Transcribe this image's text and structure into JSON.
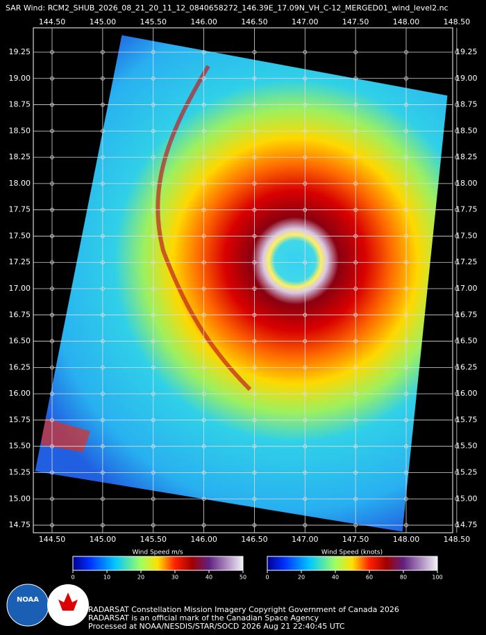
{
  "title": "SAR Wind: RCM2_SHUB_2026_08_21_20_11_12_0840658272_146.39E_17.09N_VH_C-12_MERGED01_wind_level2.nc",
  "map": {
    "lon_ticks": [
      {
        "value": 144.5,
        "label": "144.50"
      },
      {
        "value": 145,
        "label": "145.00"
      },
      {
        "value": 145.5,
        "label": "145.50"
      },
      {
        "value": 146,
        "label": "146.00"
      },
      {
        "value": 146.5,
        "label": "146.50"
      },
      {
        "value": 147,
        "label": "147.00"
      },
      {
        "value": 147.5,
        "label": "147.50"
      },
      {
        "value": 148,
        "label": "148.00"
      },
      {
        "value": 148.5,
        "label": "148.50"
      }
    ],
    "lat_ticks": [
      {
        "value": 19.25,
        "label": "19.25"
      },
      {
        "value": 19,
        "label": "19.00"
      },
      {
        "value": 18.75,
        "label": "18.75"
      },
      {
        "value": 18.5,
        "label": "18.50"
      },
      {
        "value": 18.25,
        "label": "18.25"
      },
      {
        "value": 18,
        "label": "18.00"
      },
      {
        "value": 17.75,
        "label": "17.75"
      },
      {
        "value": 17.5,
        "label": "17.50"
      },
      {
        "value": 17.25,
        "label": "17.25"
      },
      {
        "value": 17,
        "label": "17.00"
      },
      {
        "value": 16.75,
        "label": "16.75"
      },
      {
        "value": 16.5,
        "label": "16.50"
      },
      {
        "value": 16.25,
        "label": "16.25"
      },
      {
        "value": 16,
        "label": "16.00"
      },
      {
        "value": 15.75,
        "label": "15.75"
      },
      {
        "value": 15.5,
        "label": "15.50"
      },
      {
        "value": 15.25,
        "label": "15.25"
      },
      {
        "value": 15,
        "label": "15.00"
      },
      {
        "value": 14.75,
        "label": "14.75"
      }
    ]
  },
  "colorbars": [
    {
      "title": "Wind Speed m/s",
      "ticks": [
        0,
        10,
        20,
        30,
        40,
        50
      ]
    },
    {
      "title": "Wind Speed (knots)",
      "ticks": [
        0,
        20,
        40,
        60,
        80,
        100
      ]
    }
  ],
  "footer": [
    "RADARSAT Constellation Mission Imagery Copyright Government of Canada 2026",
    "RADARSAT is an official mark of the Canadian Space Agency",
    "Processed at NOAA/NESDIS/STAR/SOCD 2026 Aug 21 22:40:45 UTC"
  ],
  "logo": "NOAA"
}
